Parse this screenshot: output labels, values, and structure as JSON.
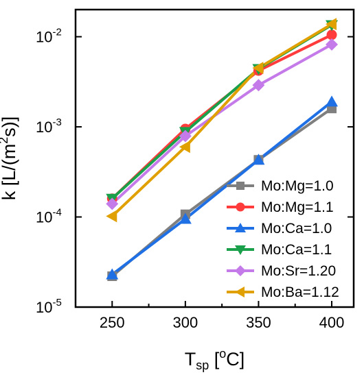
{
  "chart_data": {
    "type": "line",
    "title": "",
    "xlabel": {
      "main": "T",
      "sub": "sp",
      "rest": " [",
      "sup": "o",
      "unit": "C]"
    },
    "ylabel": {
      "pre": "k [L/(m",
      "sup": "2",
      "post": "s)]"
    },
    "x_scale": "linear",
    "y_scale": "log",
    "xlim": [
      225,
      415
    ],
    "ylim": [
      1e-05,
      0.02
    ],
    "x_ticks": [
      250,
      300,
      350,
      400
    ],
    "x_tick_labels": [
      "250",
      "300",
      "350",
      "400"
    ],
    "y_ticks": [
      {
        "value": 1e-05,
        "base": "10",
        "exp": "-5"
      },
      {
        "value": 0.0001,
        "base": "10",
        "exp": "-4"
      },
      {
        "value": 0.001,
        "base": "10",
        "exp": "-3"
      },
      {
        "value": 0.01,
        "base": "10",
        "exp": "-2"
      }
    ],
    "grid": false,
    "legend_position": "bottom-right",
    "x": [
      250,
      300,
      350,
      400
    ],
    "series": [
      {
        "name": "Mo:Mg=1.0",
        "values": [
          2.2e-05,
          0.000107,
          0.00043,
          0.0016
        ],
        "color": "#7f7f7f",
        "marker": "square"
      },
      {
        "name": "Mo:Mg=1.1",
        "values": [
          0.00016,
          0.00095,
          0.0042,
          0.0105
        ],
        "color": "#ff3b3b",
        "marker": "circle"
      },
      {
        "name": "Mo:Ca=1.0",
        "values": [
          2.3e-05,
          9.5e-05,
          0.00043,
          0.0019
        ],
        "color": "#1f6fe5",
        "marker": "triangle-up"
      },
      {
        "name": "Mo:Ca=1.1",
        "values": [
          0.00016,
          0.00088,
          0.0044,
          0.0135
        ],
        "color": "#1aa04a",
        "marker": "triangle-down"
      },
      {
        "name": "Mo:Sr=1.20",
        "values": [
          0.00014,
          0.00079,
          0.0029,
          0.0082
        ],
        "color": "#c47ae8",
        "marker": "diamond"
      },
      {
        "name": "Mo:Ba=1.12",
        "values": [
          0.000102,
          0.0006,
          0.0045,
          0.0138
        ],
        "color": "#e0a000",
        "marker": "triangle-left"
      }
    ]
  }
}
